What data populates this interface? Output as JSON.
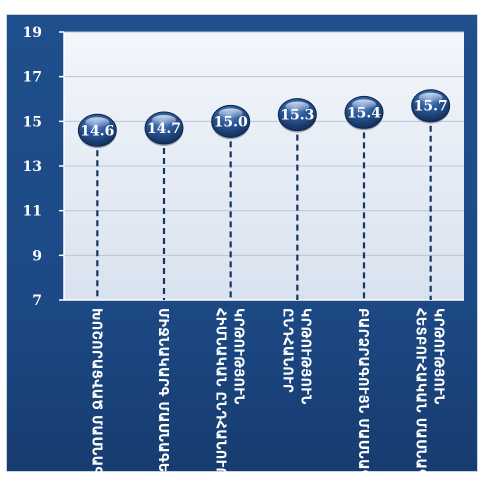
{
  "chart_data": {
    "type": "scatter",
    "categories": [
      "Խոշորացված Մասնագետ",
      "Միջնակարգ Մասնագետ",
      "Հիմնական Ընդհանուր",
      "Ընդհանուր",
      "Բարձրագույն Կրթություն",
      "Հետբուհական Կրթություն"
    ],
    "category_lines": [
      [
        "ԽՈՇՈՐԱՑՎԱԾ ՄԱՍՆԱԳԵՏ"
      ],
      [
        "ՄԻՋՆԱԿԱՐԳ ՄԱՍՆԱԳԵՏ"
      ],
      [
        "ՀԻՄՆԱԿԱՆ ԸՆԴՀԱՆՈՒՐ",
        "ԿՐԹՈՒԹՅՈՒՆ"
      ],
      [
        "ԸՆԴՀԱՆՈՒՐ",
        "ԿՐԹՈՒԹՅՈՒՆ"
      ],
      [
        "ԲԱՐՁՐԱԳՈՒՅՆ ՄԱՍՆԱԳԵՏ"
      ],
      [
        "ՀԵՏԲՈՒՀԱԿԱՆ ՄԱՍՆԱԳԵՏ",
        "ԿՐԹՈՒԹՅՈՒՆ"
      ]
    ],
    "values": [
      14.6,
      14.7,
      15.0,
      15.3,
      15.4,
      15.7
    ],
    "value_labels": [
      "14.6",
      "14.7",
      "15.0",
      "15.3",
      "15.4",
      "15.7"
    ],
    "ylim": [
      7,
      19
    ],
    "yticks": [
      7,
      9,
      11,
      13,
      15,
      17,
      19
    ],
    "grid": true,
    "legend": "none",
    "colors": {
      "background": "#1f4f8c",
      "plot_area": "#eef2f8",
      "marker": "#1d3f73",
      "stem": "#17345e",
      "text": "#ffffff"
    }
  }
}
